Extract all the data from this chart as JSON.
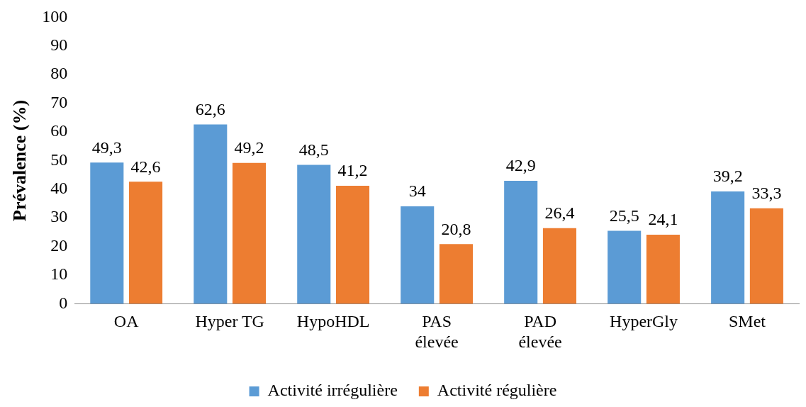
{
  "chart_data": {
    "type": "bar",
    "ylabel": "Prévalence (%)",
    "categories": [
      "OA",
      "Hyper TG",
      "HypoHDL",
      "PAS\nélevée",
      "PAD\nélevée",
      "HyperGly",
      "SMet"
    ],
    "series": [
      {
        "name": "Activité irrégulière",
        "color": "#5b9bd5",
        "values": [
          49.3,
          62.6,
          48.5,
          34,
          42.9,
          25.5,
          39.2
        ],
        "value_labels": [
          "49,3",
          "62,6",
          "48,5",
          "34",
          "42,9",
          "25,5",
          "39,2"
        ]
      },
      {
        "name": "Activité régulière",
        "color": "#ed7d31",
        "values": [
          42.6,
          49.2,
          41.2,
          20.8,
          26.4,
          24.1,
          33.3
        ],
        "value_labels": [
          "42,6",
          "49,2",
          "41,2",
          "20,8",
          "26,4",
          "24,1",
          "33,3"
        ]
      }
    ],
    "ylim": [
      0,
      100
    ],
    "yticks": [
      0,
      10,
      20,
      30,
      40,
      50,
      60,
      70,
      80,
      90,
      100
    ],
    "grid": false,
    "legend": "bottom"
  }
}
